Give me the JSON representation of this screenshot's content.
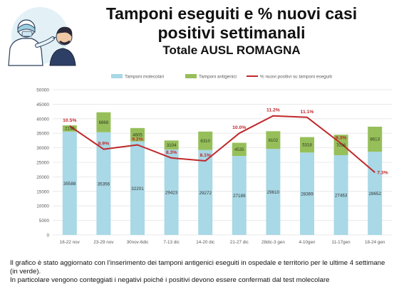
{
  "header": {
    "title_line1": "Tamponi eseguiti e % nuovi casi",
    "title_line2": "positivi settimanali",
    "subtitle": "Totale AUSL ROMAGNA"
  },
  "illustration": {
    "icon": "swab-test-illustration"
  },
  "footer": {
    "line1": "Il grafico è stato aggiornato con l’inserimento dei tamponi antigenici eseguiti in ospedale e territorio per le ultime 4 settimane (in verde).",
    "line2": "In particolare vengono conteggiati i negativi poiché i positivi devono essere confermati dal test molecolare"
  },
  "chart_data": {
    "type": "bar",
    "stacked": true,
    "categories": [
      "16-22 nov",
      "23-29 nov",
      "30nov-6dic",
      "7-13 dic",
      "14-20 dic",
      "21-27 dic",
      "28dic-3 gen",
      "4-10gen",
      "11-17gen",
      "18-24 gen"
    ],
    "series": [
      {
        "name": "Tamponi molecolari",
        "kind": "bar",
        "color": "#a9d8e6",
        "values": [
          35588,
          35356,
          32201,
          29423,
          29272,
          27189,
          29610,
          28369,
          27463,
          28652
        ],
        "labels": [
          "35588",
          "35356",
          "32201",
          "29423",
          "29272",
          "27189",
          "29610",
          "28369",
          "27463",
          "28652"
        ]
      },
      {
        "name": "Tamponi antigenici",
        "kind": "bar",
        "color": "#96bf5a",
        "values": [
          2138,
          6868,
          4605,
          3104,
          6310,
          4535,
          6102,
          5318,
          7036,
          8613
        ],
        "labels": [
          "2138",
          "6868",
          "4605",
          "3104",
          "6310",
          "4535",
          "6102",
          "5318",
          "7036",
          "8613"
        ]
      },
      {
        "name": "% nuovi positivi su tamponi eseguiti",
        "kind": "line",
        "color": "#c0282a",
        "values": [
          10.5,
          8.9,
          9.2,
          8.3,
          8.1,
          10.0,
          11.2,
          11.1,
          9.3,
          7.3
        ],
        "labels": [
          "10.5%",
          "8.9%",
          "9.2%",
          "8.3%",
          "8.1%",
          "10.0%",
          "11.2%",
          "11.1%",
          "9.3%",
          "7.3%"
        ]
      }
    ],
    "y_ticks": [
      "0",
      "5000",
      "10000",
      "15000",
      "20000",
      "25000",
      "30000",
      "35000",
      "40000",
      "45000",
      "50000"
    ],
    "ylim": [
      0,
      50000
    ],
    "grid": true,
    "legend_position": "top"
  }
}
